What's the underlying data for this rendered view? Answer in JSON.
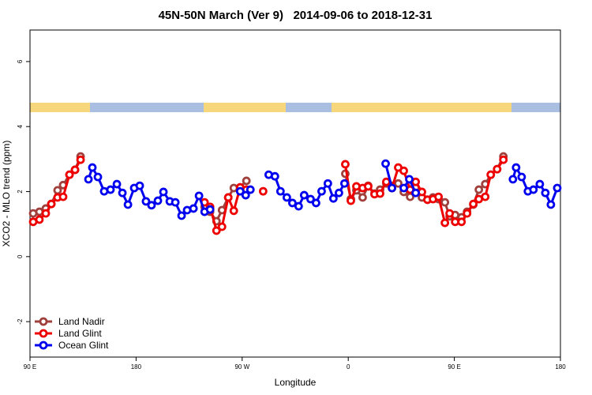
{
  "chart_data": {
    "type": "line",
    "title": "45N-50N March (Ver 9)   2014-09-06 to 2018-12-31",
    "x_label": "Longitude",
    "y_label": "XCO2 - MLO trend (ppm)",
    "xlim": [
      90,
      540
    ],
    "xticks": [
      {
        "value": 90,
        "label": "90 E"
      },
      {
        "value": 180,
        "label": "180"
      },
      {
        "value": 270,
        "label": "90 W"
      },
      {
        "value": 360,
        "label": "0"
      },
      {
        "value": 450,
        "label": "90 E"
      },
      {
        "value": 540,
        "label": "180"
      }
    ],
    "ylim": [
      -3.09,
      6.97
    ],
    "yticks": [
      -2,
      0,
      2,
      4,
      6
    ],
    "legend": "bottom left",
    "series": [
      {
        "name": "Land Nadir",
        "color": "#a0403c",
        "x": [
          92.7,
          98.0,
          103.4,
          108.1,
          113.4,
          118.1,
          123.5,
          128.2,
          132.9,
          null,
          238.1,
          242.8,
          248.2,
          252.9,
          258.2,
          262.9,
          268.3,
          273.6,
          null,
          357.5,
          362.2,
          366.9,
          372.2,
          376.9,
          382.3,
          387.0,
          392.3,
          397.1,
          402.4,
          407.1,
          412.5,
          417.2,
          422.5,
          427.2,
          431.9,
          436.6,
          442.0,
          446.0,
          450.7,
          456.1,
          460.8,
          466.1,
          470.8,
          476.2,
          480.9,
          486.3,
          491.6
        ],
        "values": [
          1.33,
          1.38,
          1.48,
          1.62,
          2.04,
          2.2,
          2.52,
          2.67,
          3.08,
          null,
          1.53,
          1.38,
          1.09,
          1.43,
          1.82,
          2.11,
          2.13,
          2.33,
          null,
          2.55,
          1.77,
          2.04,
          1.82,
          2.18,
          1.94,
          2.06,
          2.25,
          2.18,
          2.25,
          1.99,
          1.84,
          2.13,
          1.82,
          1.75,
          1.82,
          1.77,
          1.67,
          1.24,
          1.28,
          1.21,
          1.38,
          1.6,
          2.06,
          2.23,
          2.52,
          2.69,
          3.08
        ]
      },
      {
        "name": "Land Glint",
        "color": "#ee0000",
        "x": [
          92.7,
          98.0,
          103.4,
          108.1,
          113.4,
          118.1,
          123.5,
          128.2,
          132.9,
          null,
          238.1,
          242.8,
          248.2,
          252.9,
          258.2,
          262.9,
          268.3,
          273.6,
          null,
          287.8,
          null,
          357.5,
          362.2,
          366.9,
          372.2,
          376.9,
          382.3,
          387.0,
          392.3,
          397.1,
          402.4,
          407.1,
          412.5,
          417.2,
          422.5,
          427.2,
          431.9,
          436.6,
          442.0,
          446.0,
          450.7,
          456.1,
          460.8,
          466.1,
          470.8,
          476.2,
          480.9,
          486.3,
          491.6
        ],
        "values": [
          1.07,
          1.14,
          1.33,
          1.62,
          1.82,
          1.84,
          2.52,
          2.67,
          2.98,
          null,
          1.67,
          1.53,
          0.8,
          0.92,
          1.82,
          1.41,
          2.13,
          2.06,
          null,
          2.01,
          null,
          2.84,
          1.72,
          2.16,
          2.11,
          2.16,
          1.92,
          1.94,
          2.3,
          2.11,
          2.74,
          2.64,
          2.06,
          2.3,
          1.99,
          1.75,
          1.77,
          1.84,
          1.04,
          1.33,
          1.07,
          1.07,
          1.33,
          1.62,
          1.77,
          1.84,
          2.52,
          2.69,
          2.98
        ]
      },
      {
        "name": "Ocean Glint",
        "color": "#0000ee",
        "x": [
          139.6,
          142.9,
          147.6,
          152.9,
          158.3,
          163.7,
          168.4,
          173.1,
          178.4,
          183.1,
          188.4,
          193.1,
          198.5,
          203.2,
          208.6,
          213.3,
          218.6,
          223.3,
          228.7,
          233.4,
          238.1,
          242.8,
          null,
          268.3,
          273.0,
          277.0,
          null,
          292.5,
          297.8,
          302.5,
          307.9,
          312.6,
          317.9,
          322.6,
          328.0,
          332.7,
          337.4,
          342.7,
          347.4,
          352.1,
          356.8,
          null,
          391.7,
          397.1,
          null,
          407.1,
          411.8,
          417.2,
          null,
          499.7,
          502.4,
          507.1,
          512.4,
          517.1,
          522.5,
          527.2,
          531.9,
          537.3
        ],
        "values": [
          2.38,
          2.74,
          2.45,
          2.01,
          2.06,
          2.23,
          1.96,
          1.6,
          2.11,
          2.18,
          1.7,
          1.58,
          1.72,
          1.99,
          1.7,
          1.67,
          1.26,
          1.43,
          1.48,
          1.87,
          1.38,
          1.45,
          null,
          2.01,
          1.89,
          2.06,
          null,
          2.52,
          2.47,
          2.01,
          1.82,
          1.65,
          1.55,
          1.89,
          1.77,
          1.65,
          2.01,
          2.25,
          1.79,
          1.96,
          2.25,
          null,
          2.86,
          2.11,
          null,
          2.11,
          2.38,
          1.96,
          null,
          2.38,
          2.74,
          2.45,
          2.01,
          2.06,
          2.23,
          1.96,
          1.6,
          2.11
        ]
      }
    ]
  }
}
